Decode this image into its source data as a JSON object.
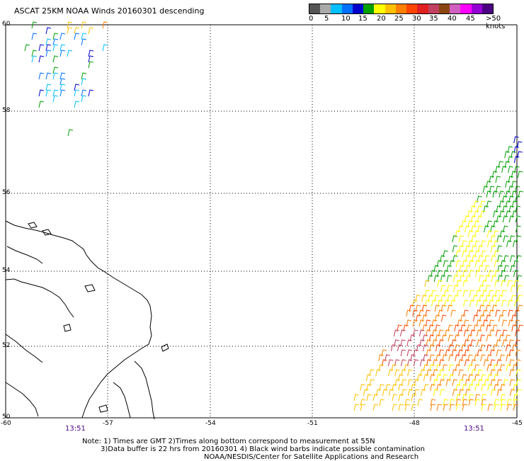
{
  "title": "ASCAT 25KM NOAA Winds 20160301 descending",
  "legend": {
    "colors": [
      "#555555",
      "#a9a9a9",
      "#00bfff",
      "#0070ff",
      "#0000cd",
      "#00a000",
      "#ffff00",
      "#ffc000",
      "#ff7f00",
      "#ff4500",
      "#e02020",
      "#c04060",
      "#8b4513",
      "#d060c0",
      "#ff00ff",
      "#9400d3",
      "#4b0082"
    ],
    "labels": [
      "0",
      "5",
      "10",
      "15",
      "20",
      "25",
      "30",
      "35",
      "40",
      "45",
      ">50 knots"
    ]
  },
  "map": {
    "lat_labels": [
      "60",
      "58",
      "56",
      "54",
      "52",
      "50"
    ],
    "lon_labels": [
      "-60",
      "-57",
      "-54",
      "-51",
      "-48",
      "-45"
    ],
    "times": [
      "13:51",
      "13:51"
    ]
  },
  "notes": [
    "Note: 1) Times are GMT 2)Times along bottom correspond to measurement at 55N",
    "3)Data buffer is 22 hrs from 20160301 4) Black wind barbs indicate possible contamination",
    "NOAA/NESDIS/Center for Satellite Applications and Research"
  ]
}
